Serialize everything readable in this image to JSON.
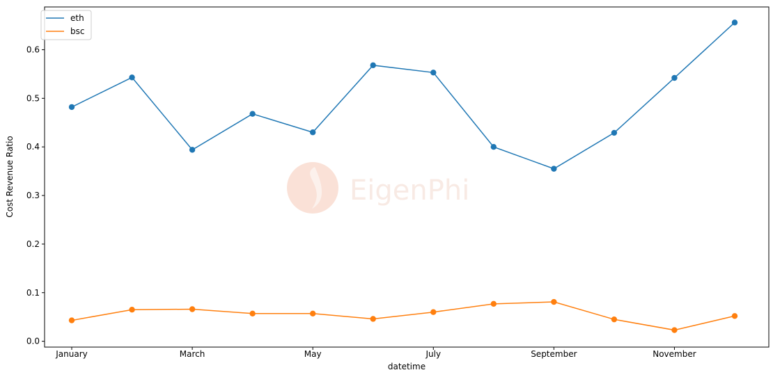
{
  "chart_data": {
    "type": "line",
    "xlabel": "datetime",
    "ylabel": "Cost Revenue Ratio",
    "x": [
      "January",
      "February",
      "March",
      "April",
      "May",
      "June",
      "July",
      "August",
      "September",
      "October",
      "November",
      "December"
    ],
    "xtick_labels": [
      "January",
      "March",
      "May",
      "July",
      "September",
      "November"
    ],
    "xtick_indices": [
      0,
      2,
      4,
      6,
      8,
      10
    ],
    "yticks": [
      0.0,
      0.1,
      0.2,
      0.3,
      0.4,
      0.5,
      0.6
    ],
    "ytick_labels": [
      "0.0",
      "0.1",
      "0.2",
      "0.3",
      "0.4",
      "0.5",
      "0.6"
    ],
    "ylim": [
      -0.012,
      0.688
    ],
    "grid": false,
    "legend_position": "upper-left",
    "series": [
      {
        "name": "eth",
        "color": "#1f77b4",
        "values": [
          0.482,
          0.543,
          0.394,
          0.468,
          0.43,
          0.568,
          0.553,
          0.4,
          0.355,
          0.429,
          0.542,
          0.656
        ]
      },
      {
        "name": "bsc",
        "color": "#ff7f0e",
        "values": [
          0.043,
          0.065,
          0.066,
          0.057,
          0.057,
          0.046,
          0.06,
          0.077,
          0.081,
          0.045,
          0.023,
          0.052
        ]
      }
    ]
  },
  "watermark": {
    "text": "EigenPhi"
  }
}
